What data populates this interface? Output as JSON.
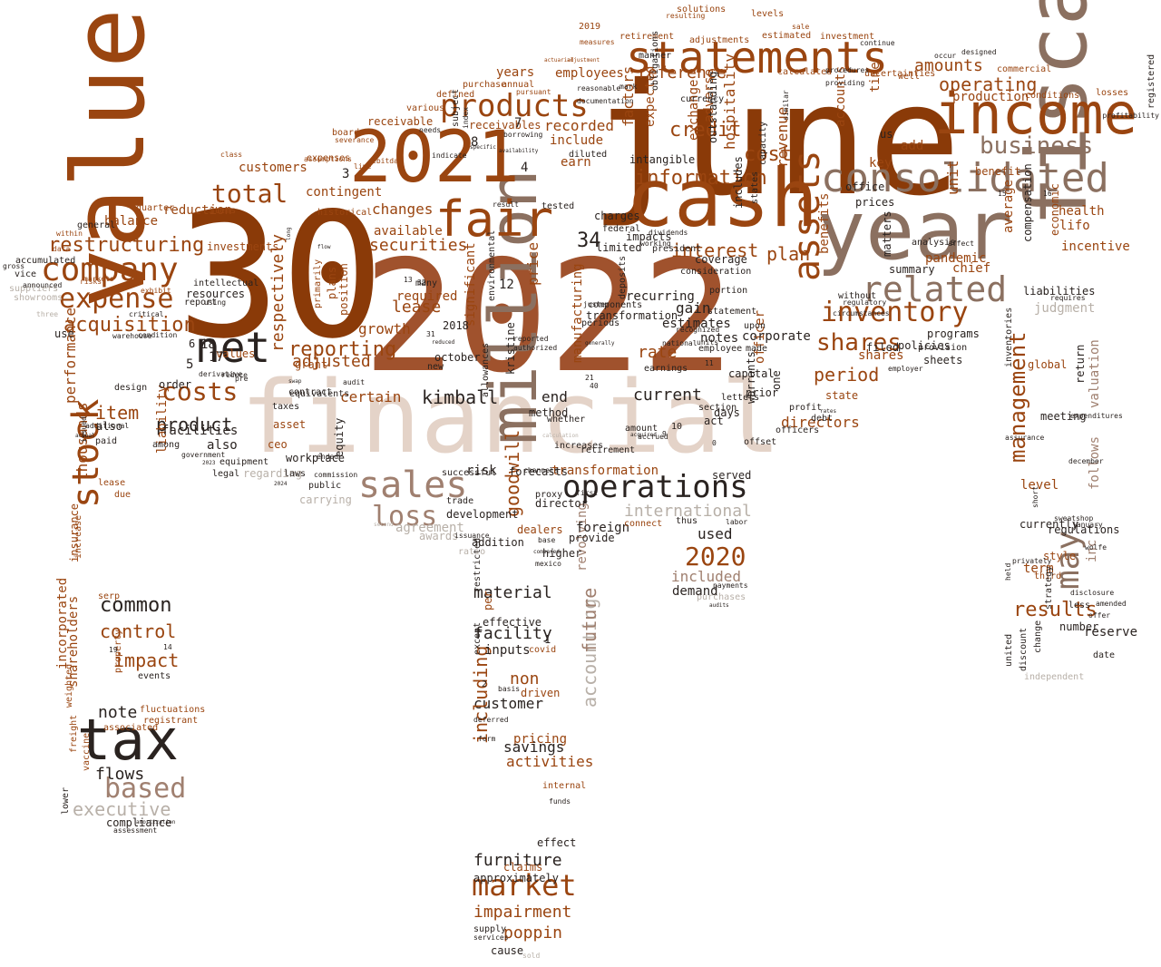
{
  "palette": {
    "rust": "#8a3a08",
    "rust2": "#9a4510",
    "brown": "#a0522d",
    "tan": "#a08070",
    "taupe": "#8b7060",
    "sand": "#e4d3c8",
    "grey": "#b8b0a8",
    "dark": "#2a2320",
    "orange": "#b35a1f"
  },
  "words": [
    "june",
    "30",
    "2022",
    "fiscal",
    "financial",
    "value",
    "year",
    "cash",
    "million",
    "2021",
    "income",
    "statements",
    "tax",
    "fair",
    "consolidated",
    "company",
    "net",
    "related",
    "assets",
    "sales",
    "operations",
    "stock",
    "may",
    "expense",
    "products",
    "business",
    "total",
    "inventory",
    "based",
    "loss",
    "market",
    "costs",
    "shares",
    "2020",
    "reporting",
    "acquisition",
    "information",
    "restructuring",
    "cost",
    "credit",
    "operating",
    "amounts",
    "period",
    "results",
    "interest",
    "plan",
    "management",
    "kimball",
    "item",
    "product",
    "common",
    "impact",
    "control",
    "note",
    "flows",
    "executive",
    "furniture",
    "impairment",
    "poppin",
    "customer",
    "material",
    "facility",
    "non",
    "goodwill",
    "accounting",
    "international",
    "revolving",
    "future",
    "including",
    "used",
    "included",
    "securities",
    "lease",
    "adjusted",
    "respectively",
    "growth",
    "rate",
    "current",
    "reference",
    "factors",
    "expected",
    "exchange",
    "adverse",
    "hospitality",
    "revenue",
    "unit",
    "employees",
    "years",
    "recorded",
    "include",
    "earn",
    "changes",
    "available",
    "required",
    "balance",
    "customers",
    "contingent",
    "thousands",
    "incorporated",
    "shareholders",
    "performance",
    "liability",
    "also",
    "facilities",
    "certain",
    "end",
    "risk",
    "price",
    "significant",
    "manufacturing",
    "transformation",
    "director",
    "foreign",
    "provide",
    "shares",
    "officer",
    "directors",
    "chief",
    "lifo",
    "health",
    "incentive",
    "average",
    "level",
    "term",
    "reserve",
    "number",
    "inc",
    "follows",
    "valuation",
    "judgment",
    "liabilities",
    "compensation",
    "economic",
    "pandemic",
    "production",
    "benefit",
    "us",
    "add",
    "key",
    "time",
    "accounts",
    "office",
    "benefits",
    "state",
    "corporate",
    "capital",
    "gain",
    "estimates",
    "notes",
    "earnings",
    "new",
    "october",
    "also",
    "order",
    "design",
    "lease",
    "due",
    "serp",
    "insurance",
    "increase",
    "property",
    "associated",
    "registrant",
    "fluctuations",
    "events",
    "weighted",
    "lower",
    "freight",
    "vaccine",
    "compliance",
    "assessment",
    "amortization",
    "regarding",
    "asset",
    "ceo",
    "grant",
    "equity",
    "public",
    "plans",
    "primarily",
    "position",
    "equivalents",
    "taxes",
    "contract",
    "carrying",
    "development",
    "addition",
    "ratio",
    "awards",
    "agreement",
    "issuance",
    "per",
    "claims",
    "effect",
    "internal",
    "funds",
    "approximately",
    "supply",
    "services",
    "cause",
    "sold",
    "effective",
    "inputs",
    "pricing",
    "activities",
    "savings",
    "driven",
    "covid",
    "deferred",
    "basis",
    "form",
    "restricted",
    "except",
    "proxy",
    "second",
    "thus",
    "labor",
    "purchases",
    "demand",
    "audits",
    "payments",
    "served",
    "offset",
    "act",
    "days",
    "letters",
    "section",
    "warrants",
    "prior",
    "one",
    "profit",
    "officers",
    "debt",
    "rates",
    "filed",
    "policies",
    "programs",
    "provision",
    "analysis",
    "employer",
    "sheets",
    "global",
    "return",
    "meeting",
    "currently",
    "style",
    "regulations",
    "third",
    "less",
    "date",
    "discount",
    "change",
    "united",
    "held",
    "short",
    "independent",
    "strategy",
    "registered",
    "profitability",
    "solutions",
    "levels",
    "resulting",
    "sale",
    "2019",
    "retirement",
    "measures",
    "actuarial",
    "adjustment",
    "adjustments",
    "estimated",
    "investment",
    "calculated",
    "uncertainties",
    "well",
    "commercial",
    "losses",
    "conditions",
    "defined",
    "annual",
    "purchase",
    "pursuant",
    "various",
    "receivables",
    "receivable",
    "ebitda",
    "severance",
    "board",
    "class",
    "expenses",
    "assumptions",
    "historical",
    "line",
    "items",
    "quarter",
    "general",
    "within",
    "data",
    "accumulated",
    "gross",
    "vice",
    "suppliers",
    "showrooms",
    "three",
    "announced",
    "risks",
    "markets",
    "exhibit",
    "warehouse",
    "condition",
    "critical",
    "resources",
    "investments",
    "reduction",
    "intellectual",
    "report",
    "using",
    "use",
    "values",
    "derivative",
    "reduce",
    "pre",
    "additional",
    "issued",
    "actual",
    "paid",
    "among",
    "government",
    "legal",
    "equipment",
    "workplace",
    "laws",
    "swap",
    "audit",
    "long",
    "flow",
    "ended",
    "commission",
    "trade",
    "successful",
    "forecasts",
    "environmental",
    "authorized",
    "reported",
    "generally",
    "periods",
    "transformation",
    "components",
    "reduced",
    "juster",
    "deposits",
    "charges",
    "result",
    "tested",
    "diluted",
    "index",
    "subject",
    "limited",
    "federal",
    "president",
    "coverage",
    "consideration",
    "employee",
    "units",
    "recognized",
    "national",
    "portion",
    "statement",
    "upon",
    "made",
    "states",
    "capacity",
    "similar",
    "includes",
    "outstanding",
    "intangible",
    "obligations",
    "working",
    "dividends",
    "prices",
    "without",
    "summary",
    "matters",
    "inventories",
    "affect",
    "increases",
    "method",
    "whether",
    "retirement",
    "accrued",
    "amount",
    "acquired",
    "higher",
    "mexico",
    "compared",
    "first",
    "dealers",
    "connect",
    "base",
    "kristine",
    "allowances",
    "calculation",
    "channels",
    "procedures",
    "providing",
    "documentation",
    "reasonable",
    "manner",
    "continue",
    "occur",
    "designed",
    "needs",
    "indicate",
    "specific",
    "borrowing",
    "availability",
    "sweatshop",
    "privately",
    "assurance",
    "wolfe",
    "amended",
    "offer",
    "disclosure",
    "january",
    "december",
    "expenditures",
    "requires",
    "regulatory",
    "circumstances",
    "currency",
    "impacts",
    "mark",
    "many",
    "2018",
    "recurring",
    "18",
    "17",
    "6",
    "5",
    "12",
    "34",
    "3",
    "4",
    "8",
    "7",
    "1",
    "2",
    "19",
    "14",
    "11",
    "9",
    "10",
    "0",
    "31",
    "32",
    "13",
    "16",
    "15",
    "21",
    "40",
    "2023",
    "2024",
    "2017",
    "u",
    "k",
    "b",
    "ii"
  ]
}
